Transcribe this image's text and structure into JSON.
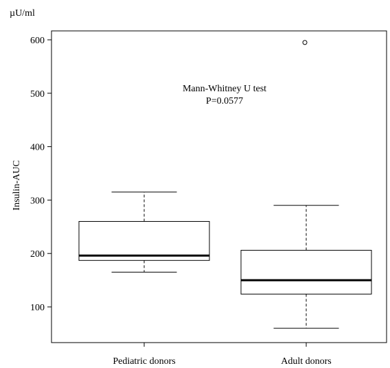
{
  "chart_data": {
    "type": "box",
    "unit_label": "µU/ml",
    "ylabel": "Insulin-AUC",
    "xlabel": "",
    "ylim": [
      40,
      640
    ],
    "yticks": [
      100,
      200,
      300,
      400,
      500,
      600
    ],
    "annotation": {
      "line1": "Mann-Whitney  U test",
      "line2": "P=0.0577"
    },
    "categories": [
      "Pediatric  donors",
      "Adult donors"
    ],
    "boxes": [
      {
        "name": "Pediatric  donors",
        "whisker_low": 165,
        "q1": 187,
        "median": 196,
        "q3": 260,
        "whisker_high": 315,
        "outliers": []
      },
      {
        "name": "Adult donors",
        "whisker_low": 60,
        "q1": 124,
        "median": 150,
        "q3": 206,
        "whisker_high": 290,
        "outliers": [
          595
        ]
      }
    ]
  }
}
